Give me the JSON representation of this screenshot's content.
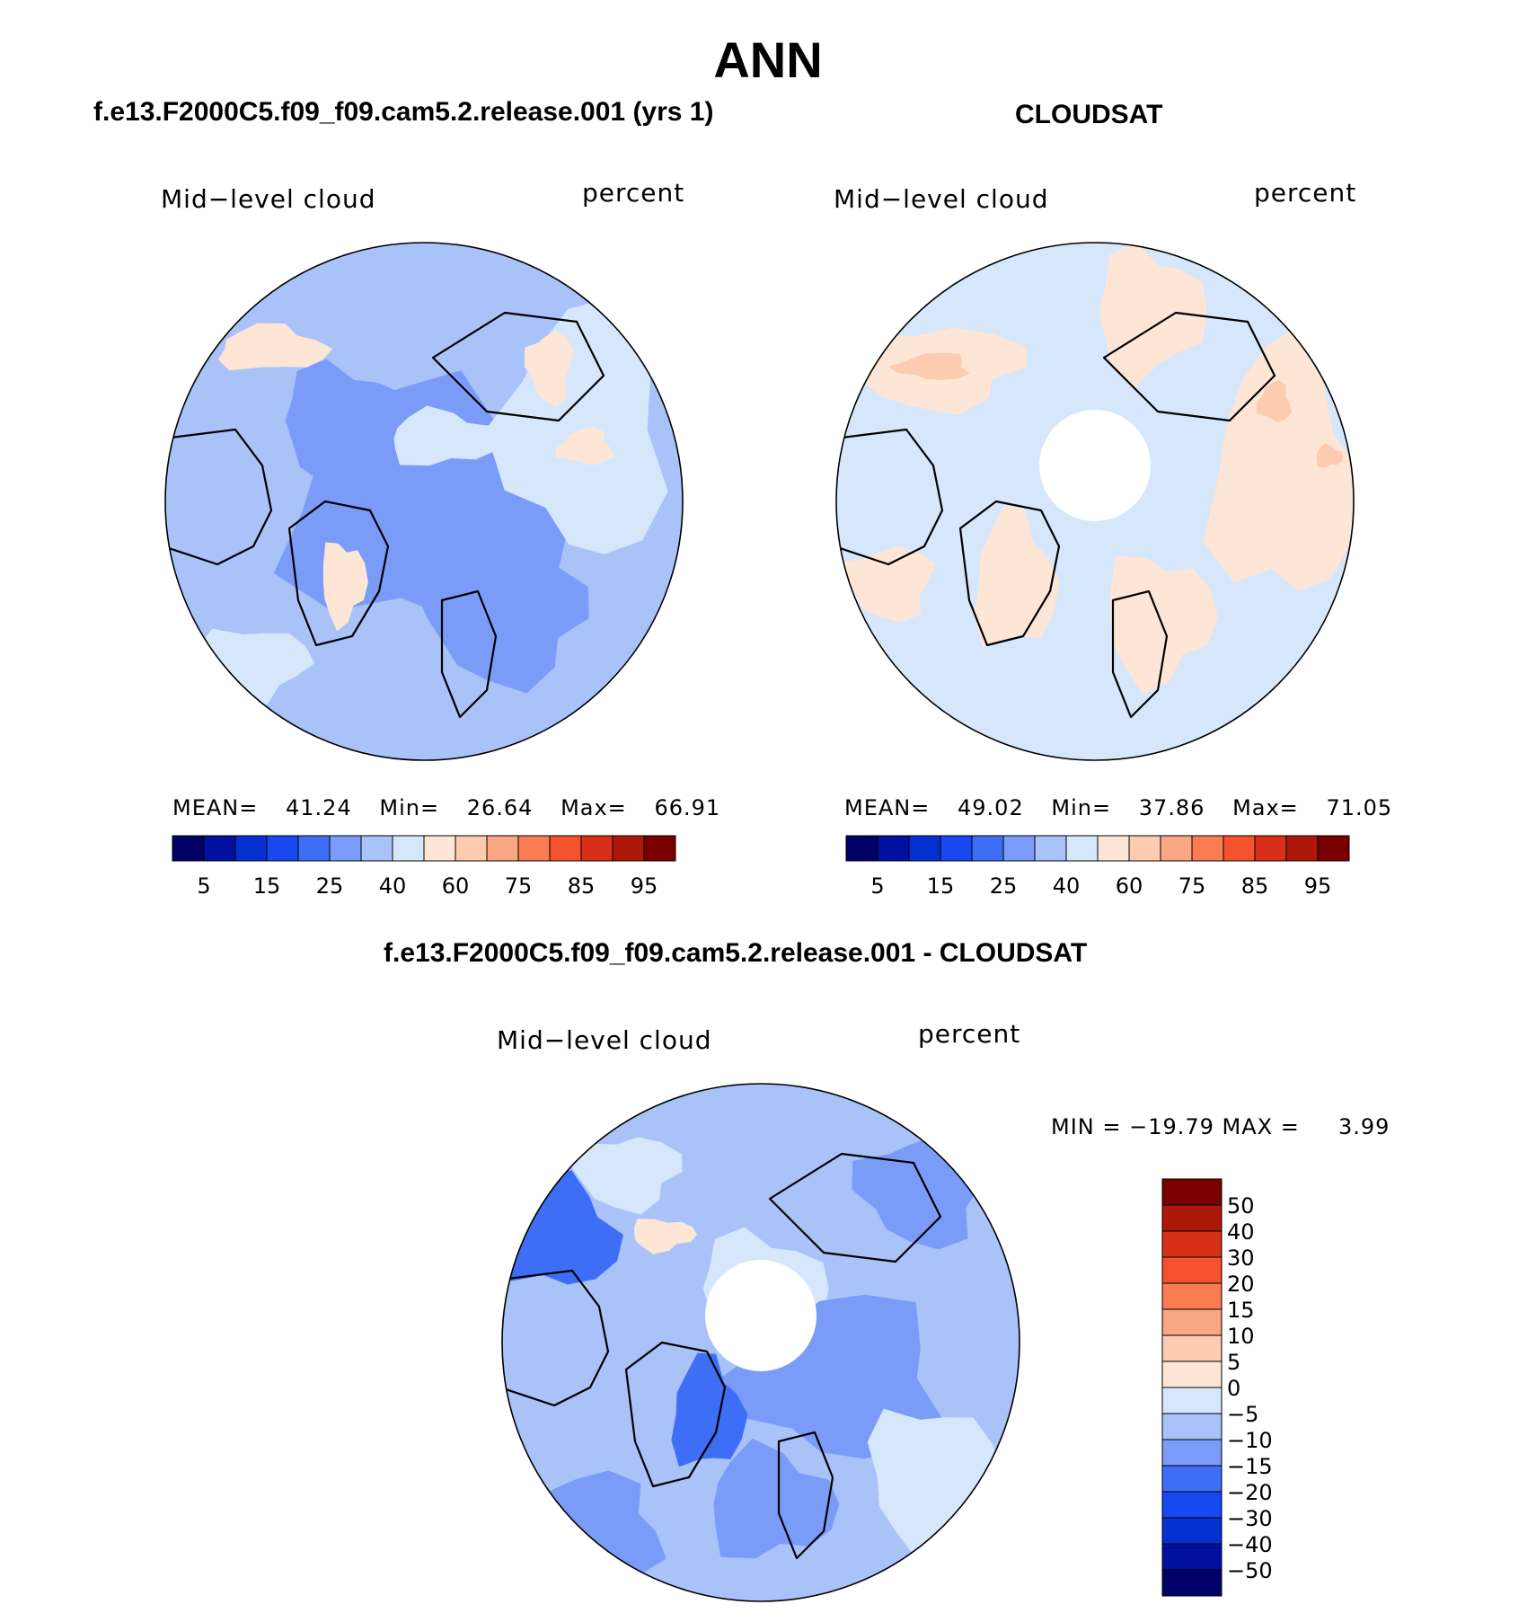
{
  "page": {
    "title": "ANN"
  },
  "colors": {
    "scale": [
      "#000066",
      "#0010a0",
      "#0530d0",
      "#1848f0",
      "#3e6ef5",
      "#7a9cf8",
      "#a9c2f8",
      "#d6e7fb",
      "#fde6d6",
      "#fccbb0",
      "#f9a682",
      "#f97c52",
      "#f3522c",
      "#d83018",
      "#ae1808",
      "#7a0000"
    ],
    "coastline": "#000000"
  },
  "left": {
    "header": "f.e13.F2000C5.f09_f09.cam5.2.release.001 (yrs 1)",
    "variable": "Mid−level cloud",
    "units": "percent",
    "stats": {
      "mean_label": "MEAN=",
      "mean": "41.24",
      "min_label": "Min=",
      "min": "26.64",
      "max_label": "Max=",
      "max": "66.91"
    }
  },
  "right": {
    "header": "CLOUDSAT",
    "variable": "Mid−level cloud",
    "units": "percent",
    "stats": {
      "mean_label": "MEAN=",
      "mean": "49.02",
      "min_label": "Min=",
      "min": "37.86",
      "max_label": "Max=",
      "max": "71.05"
    }
  },
  "abs_colorbar": {
    "ticks": [
      "5",
      "15",
      "25",
      "40",
      "60",
      "75",
      "85",
      "95"
    ]
  },
  "diff": {
    "header": "f.e13.F2000C5.f09_f09.cam5.2.release.001 - CLOUDSAT",
    "variable": "Mid−level cloud",
    "units": "percent",
    "stats": "MIN = −19.79 MAX =     3.99",
    "ticks": [
      "50",
      "40",
      "30",
      "20",
      "15",
      "10",
      "5",
      "0",
      "−5",
      "−10",
      "−15",
      "−20",
      "−30",
      "−40",
      "−50"
    ]
  }
}
